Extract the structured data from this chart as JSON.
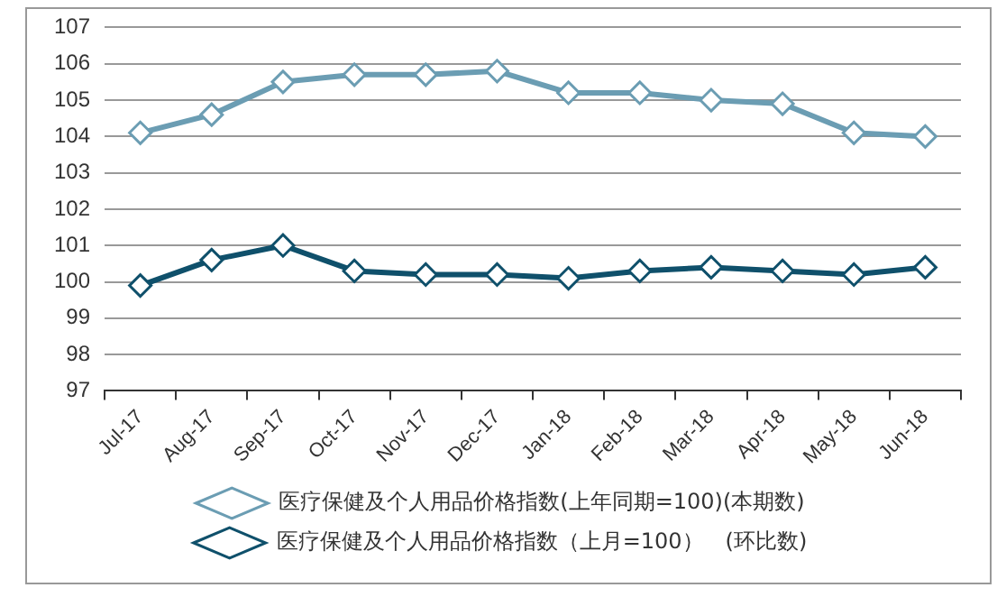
{
  "chart_data": {
    "type": "line",
    "categories": [
      "Jul-17",
      "Aug-17",
      "Sep-17",
      "Oct-17",
      "Nov-17",
      "Dec-17",
      "Jan-18",
      "Feb-18",
      "Mar-18",
      "Apr-18",
      "May-18",
      "Jun-18"
    ],
    "series": [
      {
        "name": "医疗保健及个人用品价格指数(上年同期=100)(本期数)",
        "color": "#6b9db3",
        "values": [
          104.1,
          104.6,
          105.5,
          105.7,
          105.7,
          105.8,
          105.2,
          105.2,
          105.0,
          104.9,
          104.1,
          104.0
        ]
      },
      {
        "name": "医疗保健及个人用品价格指数（上月=100）　(环比数)",
        "color": "#0f506b",
        "values": [
          99.9,
          100.6,
          101.0,
          100.3,
          100.2,
          100.2,
          100.1,
          100.3,
          100.4,
          100.3,
          100.2,
          100.4
        ]
      }
    ],
    "ylim": [
      97,
      107
    ],
    "yticks": [
      97,
      98,
      99,
      100,
      101,
      102,
      103,
      104,
      105,
      106,
      107
    ],
    "grid": "y",
    "legend": "bottom",
    "marker": "diamond",
    "line_style": "solid"
  }
}
